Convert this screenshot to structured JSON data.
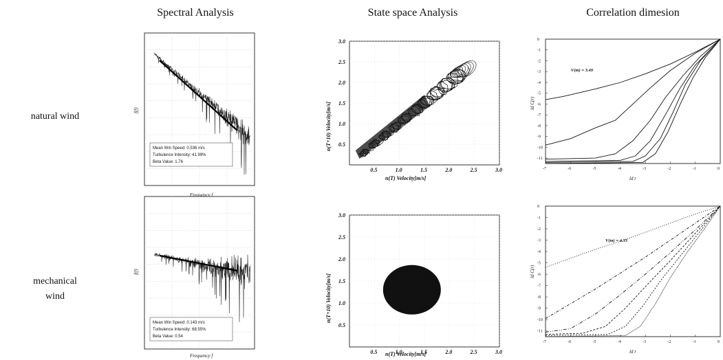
{
  "columns": {
    "spectral": "Spectral Analysis",
    "state": "State space Analysis",
    "corr": "Correlation dimesion"
  },
  "rows": {
    "natural": "natural wind",
    "mechanical_1": "mechanical",
    "mechanical_2": "wind"
  },
  "chart_data": [
    {
      "type": "line",
      "panel": "spectral-natural",
      "xlabel": "Frequency f",
      "ylabel": "f(f)",
      "scale": "log-log",
      "stats": {
        "line1": "Mean Win Speed: 0.536 m/s",
        "line2": "Turbulence Intensity: 41.99%",
        "line3": "Beta Value: 1.76"
      }
    },
    {
      "type": "line",
      "panel": "spectral-mechanical",
      "xlabel": "Frequency f",
      "ylabel": "f(f)",
      "scale": "log-log",
      "stats": {
        "line1": "Mean Win Speed: 0.143 m/s",
        "line2": "Turbulence Intensity: 68.55%",
        "line3": "Beta Value: 0.54"
      }
    },
    {
      "type": "scatter",
      "panel": "state-natural",
      "xlabel": "n(T) Velocity[m/s]",
      "ylabel": "n(T+10) Velocity[m/s]",
      "xticks": [
        "0.5",
        "1.0",
        "1.5",
        "2.0",
        "2.5",
        "3.0"
      ],
      "yticks": [
        "0.5",
        "1.0",
        "1.5",
        "2.0",
        "2.5",
        "3.0"
      ],
      "xlim": [
        0,
        3
      ],
      "ylim": [
        0,
        3
      ]
    },
    {
      "type": "scatter",
      "panel": "state-mechanical",
      "xlabel": "n(T) Velocity[m/s]",
      "ylabel": "n(T+10) Velocity[m/s]",
      "xticks": [
        "0.5",
        "1.0",
        "1.5",
        "2.0",
        "2.5",
        "3.0"
      ],
      "yticks": [
        "0.5",
        "1.0",
        "1.5",
        "2.0",
        "2.5",
        "3.0"
      ],
      "xlim": [
        0,
        3
      ],
      "ylim": [
        0,
        3
      ]
    },
    {
      "type": "line",
      "panel": "corr-natural",
      "xlabel": "ld r",
      "ylabel": "ld C(r)",
      "xticks": [
        "-7",
        "-6",
        "-5",
        "-4",
        "-3",
        "-2",
        "-1",
        "0"
      ],
      "yticks": [
        "0",
        "-1",
        "-2",
        "-3",
        "-4",
        "-5",
        "-6",
        "-7",
        "-8",
        "-9",
        "-10",
        "-11"
      ],
      "xlim": [
        -7,
        0
      ],
      "ylim": [
        -11.5,
        0
      ],
      "annotation": "V(m) = 3.49",
      "curves": [
        {
          "x": [
            -7,
            -6.3,
            -5,
            -4,
            -3,
            -2,
            -1,
            0
          ],
          "y": [
            -5.6,
            -5.3,
            -4.6,
            -4,
            -3.2,
            -2.3,
            -1.2,
            0
          ]
        },
        {
          "x": [
            -7,
            -6,
            -5,
            -4.2,
            -3.5,
            -2.8,
            -2,
            -1,
            0
          ],
          "y": [
            -9.8,
            -9.2,
            -8.2,
            -7.5,
            -6,
            -4.5,
            -2.9,
            -1.3,
            0
          ]
        },
        {
          "x": [
            -7,
            -5,
            -4.2,
            -3.5,
            -2.8,
            -2.2,
            -1.5,
            -0.8,
            0
          ],
          "y": [
            -11.1,
            -11.0,
            -10.6,
            -9.4,
            -7.5,
            -5.4,
            -3.4,
            -1.6,
            0
          ]
        },
        {
          "x": [
            -7,
            -4,
            -3.4,
            -2.8,
            -2.2,
            -1.6,
            -1,
            0
          ],
          "y": [
            -11.3,
            -11.2,
            -10.8,
            -9.4,
            -7.0,
            -4.5,
            -2.4,
            0
          ]
        },
        {
          "x": [
            -7,
            -3.5,
            -3,
            -2.4,
            -1.9,
            -1.4,
            -0.8,
            0
          ],
          "y": [
            -11.4,
            -11.3,
            -10.8,
            -9.2,
            -6.8,
            -4.2,
            -2.0,
            0
          ]
        },
        {
          "x": [
            -7,
            -3.1,
            -2.6,
            -2.1,
            -1.6,
            -1.1,
            -0.6,
            0
          ],
          "y": [
            -11.5,
            -11.4,
            -10.6,
            -8.6,
            -6.0,
            -3.6,
            -1.7,
            0
          ]
        }
      ]
    },
    {
      "type": "line",
      "panel": "corr-mechanical",
      "xlabel": "ld r",
      "ylabel": "ld C(r)",
      "xticks": [
        "-7",
        "-6",
        "-5",
        "-4",
        "-3",
        "-2",
        "-1",
        "0"
      ],
      "yticks": [
        "0",
        "-1",
        "-2",
        "-3",
        "-4",
        "-5",
        "-6",
        "-7",
        "-8",
        "-9",
        "-10",
        "-11"
      ],
      "xlim": [
        -7,
        0
      ],
      "ylim": [
        -11.5,
        0
      ],
      "annotation": "V(m) = 4.33",
      "curves": [
        {
          "x": [
            -7,
            -6,
            -5,
            -4,
            -3,
            -2,
            -1,
            0
          ],
          "y": [
            -5.4,
            -4.6,
            -3.8,
            -3.1,
            -2.3,
            -1.5,
            -0.7,
            0
          ]
        },
        {
          "x": [
            -7,
            -6,
            -5,
            -4,
            -3,
            -2,
            -1,
            0
          ],
          "y": [
            -9.9,
            -8.6,
            -7.3,
            -5.9,
            -4.5,
            -3.0,
            -1.5,
            0
          ]
        },
        {
          "x": [
            -7,
            -6,
            -5,
            -4,
            -3,
            -2,
            -1,
            0
          ],
          "y": [
            -11.1,
            -10.8,
            -9.5,
            -7.8,
            -6.0,
            -4.1,
            -2.1,
            0
          ]
        },
        {
          "x": [
            -7,
            -5.5,
            -4.6,
            -3.8,
            -3,
            -2,
            -1,
            0
          ],
          "y": [
            -11.3,
            -11.2,
            -10.6,
            -9.0,
            -7.1,
            -4.8,
            -2.4,
            0
          ]
        },
        {
          "x": [
            -7,
            -4.5,
            -3.8,
            -3.1,
            -2.4,
            -1.6,
            -0.8,
            0
          ],
          "y": [
            -11.4,
            -11.3,
            -10.6,
            -8.8,
            -6.6,
            -4.4,
            -2.2,
            0
          ]
        },
        {
          "x": [
            -7,
            -3.8,
            -3.2,
            -2.6,
            -2,
            -1.3,
            -0.6,
            0
          ],
          "y": [
            -11.5,
            -11.4,
            -10.6,
            -8.6,
            -6.3,
            -4.0,
            -1.9,
            0
          ]
        }
      ]
    }
  ]
}
